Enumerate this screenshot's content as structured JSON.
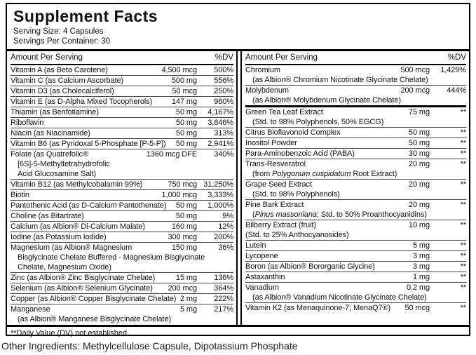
{
  "title": "Supplement Facts",
  "serving": {
    "size": "Serving Size: 4 Capsules",
    "per_container": "Servings Per Container: 30"
  },
  "columns_header": {
    "amount": "Amount Per Serving",
    "dv": "%DV"
  },
  "left_column": {
    "rows": [
      {
        "name": "Vitamin A (as Beta Carotene)",
        "amount": "4,500 mcg",
        "dv": "500%"
      },
      {
        "name": "Vitamin C (as Calcium Ascorbate)",
        "amount": "500 mg",
        "dv": "556%"
      },
      {
        "name": "Vitamin D3 (as Cholecalciferol)",
        "amount": "50 mcg",
        "dv": "250%"
      },
      {
        "name": "Vitamin E (as D-Alpha Mixed Tocopherols)",
        "amount": "147 mg",
        "dv": "980%"
      },
      {
        "name": "Thiamin (as Benfotiamine)",
        "amount": "50 mg",
        "dv": "4,167%"
      },
      {
        "name": "Riboflavin",
        "amount": "50 mg",
        "dv": "3,846%"
      },
      {
        "name": "Niacin (as Niacinamide)",
        "amount": "50 mg",
        "dv": "313%"
      },
      {
        "name": "Vitamin B6 (as Pyridoxal 5-Phosphate [P-5-P])",
        "amount": "50 mg",
        "dv": "2,941%"
      },
      {
        "name": "Folate (as Quatrefolic®",
        "amount": "1360 mcg DFE",
        "dv": "340%",
        "subs": [
          {
            "segments": [
              {
                "t": "[6S]-5-Methyltetrahydrofolic"
              }
            ]
          },
          {
            "segments": [
              {
                "t": "Acid Glucosamine Salt)"
              }
            ]
          }
        ]
      },
      {
        "name": "Vitamin B12 (as Methylcobalamin 99%)",
        "amount": "750 mcg",
        "dv": "31,250%"
      },
      {
        "name": "Biotin",
        "amount": "1,000 mcg",
        "dv": "3,333%"
      },
      {
        "name": "Pantothenic Acid (as D-Calcium Pantothenate)",
        "amount": "50 mg",
        "dv": "1,000%"
      },
      {
        "name": "Choline (as Bitartrate)",
        "amount": "50 mg",
        "dv": "9%"
      },
      {
        "name": "Calcium (as Albion® Di-Calcium Malate)",
        "amount": "160 mg",
        "dv": "12%"
      },
      {
        "name": "Iodine (as Potassium Iodide)",
        "amount": "300 mcg",
        "dv": "200%"
      },
      {
        "name": "Magnesium (as Albion® Magnesium",
        "amount": "150 mg",
        "dv": "36%",
        "subs": [
          {
            "segments": [
              {
                "t": "Bisglycinate Chelate Buffered - Magnesium Bisglycinate"
              }
            ]
          },
          {
            "segments": [
              {
                "t": "Chelate, Magnesium Oxide)"
              }
            ]
          }
        ]
      },
      {
        "name": "Zinc (as Albion® Zinc Bisglycinate Chelate)",
        "amount": "15 mg",
        "dv": "136%"
      },
      {
        "name": "Selenium (as Albion® Selenium Glycinate)",
        "amount": "200 mcg",
        "dv": "364%"
      },
      {
        "name": "Copper (as Albion® Copper Bisglycinate Chelate)",
        "amount": "2 mg",
        "dv": "222%"
      },
      {
        "name": "Manganese",
        "amount": "5 mg",
        "dv": "217%",
        "subs": [
          {
            "segments": [
              {
                "t": "(as Albion® Manganese Bisglycinate Chelate)"
              }
            ]
          }
        ]
      }
    ]
  },
  "right_column": {
    "rows": [
      {
        "name": "Chromium",
        "amount": "500 mcg",
        "dv": "1,429%",
        "subs": [
          {
            "segments": [
              {
                "t": "(as Albion® Chromium Nicotinate Glycinate Chelate)"
              }
            ]
          }
        ]
      },
      {
        "name": "Molybdenum",
        "amount": "200 mcg",
        "dv": "444%",
        "subs": [
          {
            "segments": [
              {
                "t": "(as Albion® Molybdenum Glycinate Chelate)"
              }
            ]
          }
        ]
      },
      {
        "name": "Green Tea Leaf Extract",
        "amount": "75 mg",
        "dv": "**",
        "sep": "thick",
        "subs": [
          {
            "segments": [
              {
                "t": "(Std. to 98% Polyphenols, 50% EGCG)"
              }
            ]
          }
        ]
      },
      {
        "name": "Citrus Bioflavonoid Complex",
        "amount": "50 mg",
        "dv": "**"
      },
      {
        "name": "Inositol Powder",
        "amount": "50 mg",
        "dv": "**"
      },
      {
        "name": "Para-Aminobenzoic Acid (PABA)",
        "amount": "30 mg",
        "dv": "**"
      },
      {
        "name": "Trans-Resveratrol",
        "amount": "20 mg",
        "dv": "**",
        "subs": [
          {
            "segments": [
              {
                "t": "(from "
              },
              {
                "t": "Polygonum cuspidatum",
                "i": true
              },
              {
                "t": " Root Extract)"
              }
            ]
          }
        ]
      },
      {
        "name": "Grape Seed Extract",
        "amount": "20 mg",
        "dv": "**",
        "subs": [
          {
            "segments": [
              {
                "t": "(Std. to 98% Polyphenols)"
              }
            ]
          }
        ]
      },
      {
        "name": "Pine Bark Extract",
        "amount": "20 mg",
        "dv": "**",
        "subs": [
          {
            "segments": [
              {
                "t": "("
              },
              {
                "t": "Pinus massoniana",
                "i": true
              },
              {
                "t": "; Std. to 50% Proanthocyanidins)"
              }
            ]
          }
        ]
      },
      {
        "name": "Bilberry Extract (fruit)",
        "amount": "10 mg",
        "dv": "**",
        "subs": [
          {
            "indent": false,
            "segments": [
              {
                "t": "(Std. to 25% Anthocyanosides)"
              }
            ]
          }
        ]
      },
      {
        "name": "Lutein",
        "amount": "5 mg",
        "dv": "**"
      },
      {
        "name": "Lycopene",
        "amount": "3 mg",
        "dv": "**"
      },
      {
        "name": "Boron (as Albion® Bororganic Glycine)",
        "amount": "3 mg",
        "dv": "**"
      },
      {
        "name": "Astaxanthin",
        "amount": "1 mg",
        "dv": "**"
      },
      {
        "name": "Vanadium",
        "amount": "0.2 mg",
        "dv": "**",
        "subs": [
          {
            "segments": [
              {
                "t": "(as Albion® Vanadium Nicotinate Glycinate Chelate)"
              }
            ]
          }
        ]
      },
      {
        "name": "Vitamin K2 (as Menaquinone-7; MenaQ7®)",
        "amount": "50 mcg",
        "dv": "**"
      }
    ]
  },
  "footnote": "**Daily Value (DV) not established",
  "other_ingredients": "Other Ingredients: Methylcellulose Capsule, Dipotassium Phosphate",
  "colors": {
    "background": "#ffffff",
    "text": "#111111",
    "border": "#000000",
    "row_line": "#454545"
  }
}
